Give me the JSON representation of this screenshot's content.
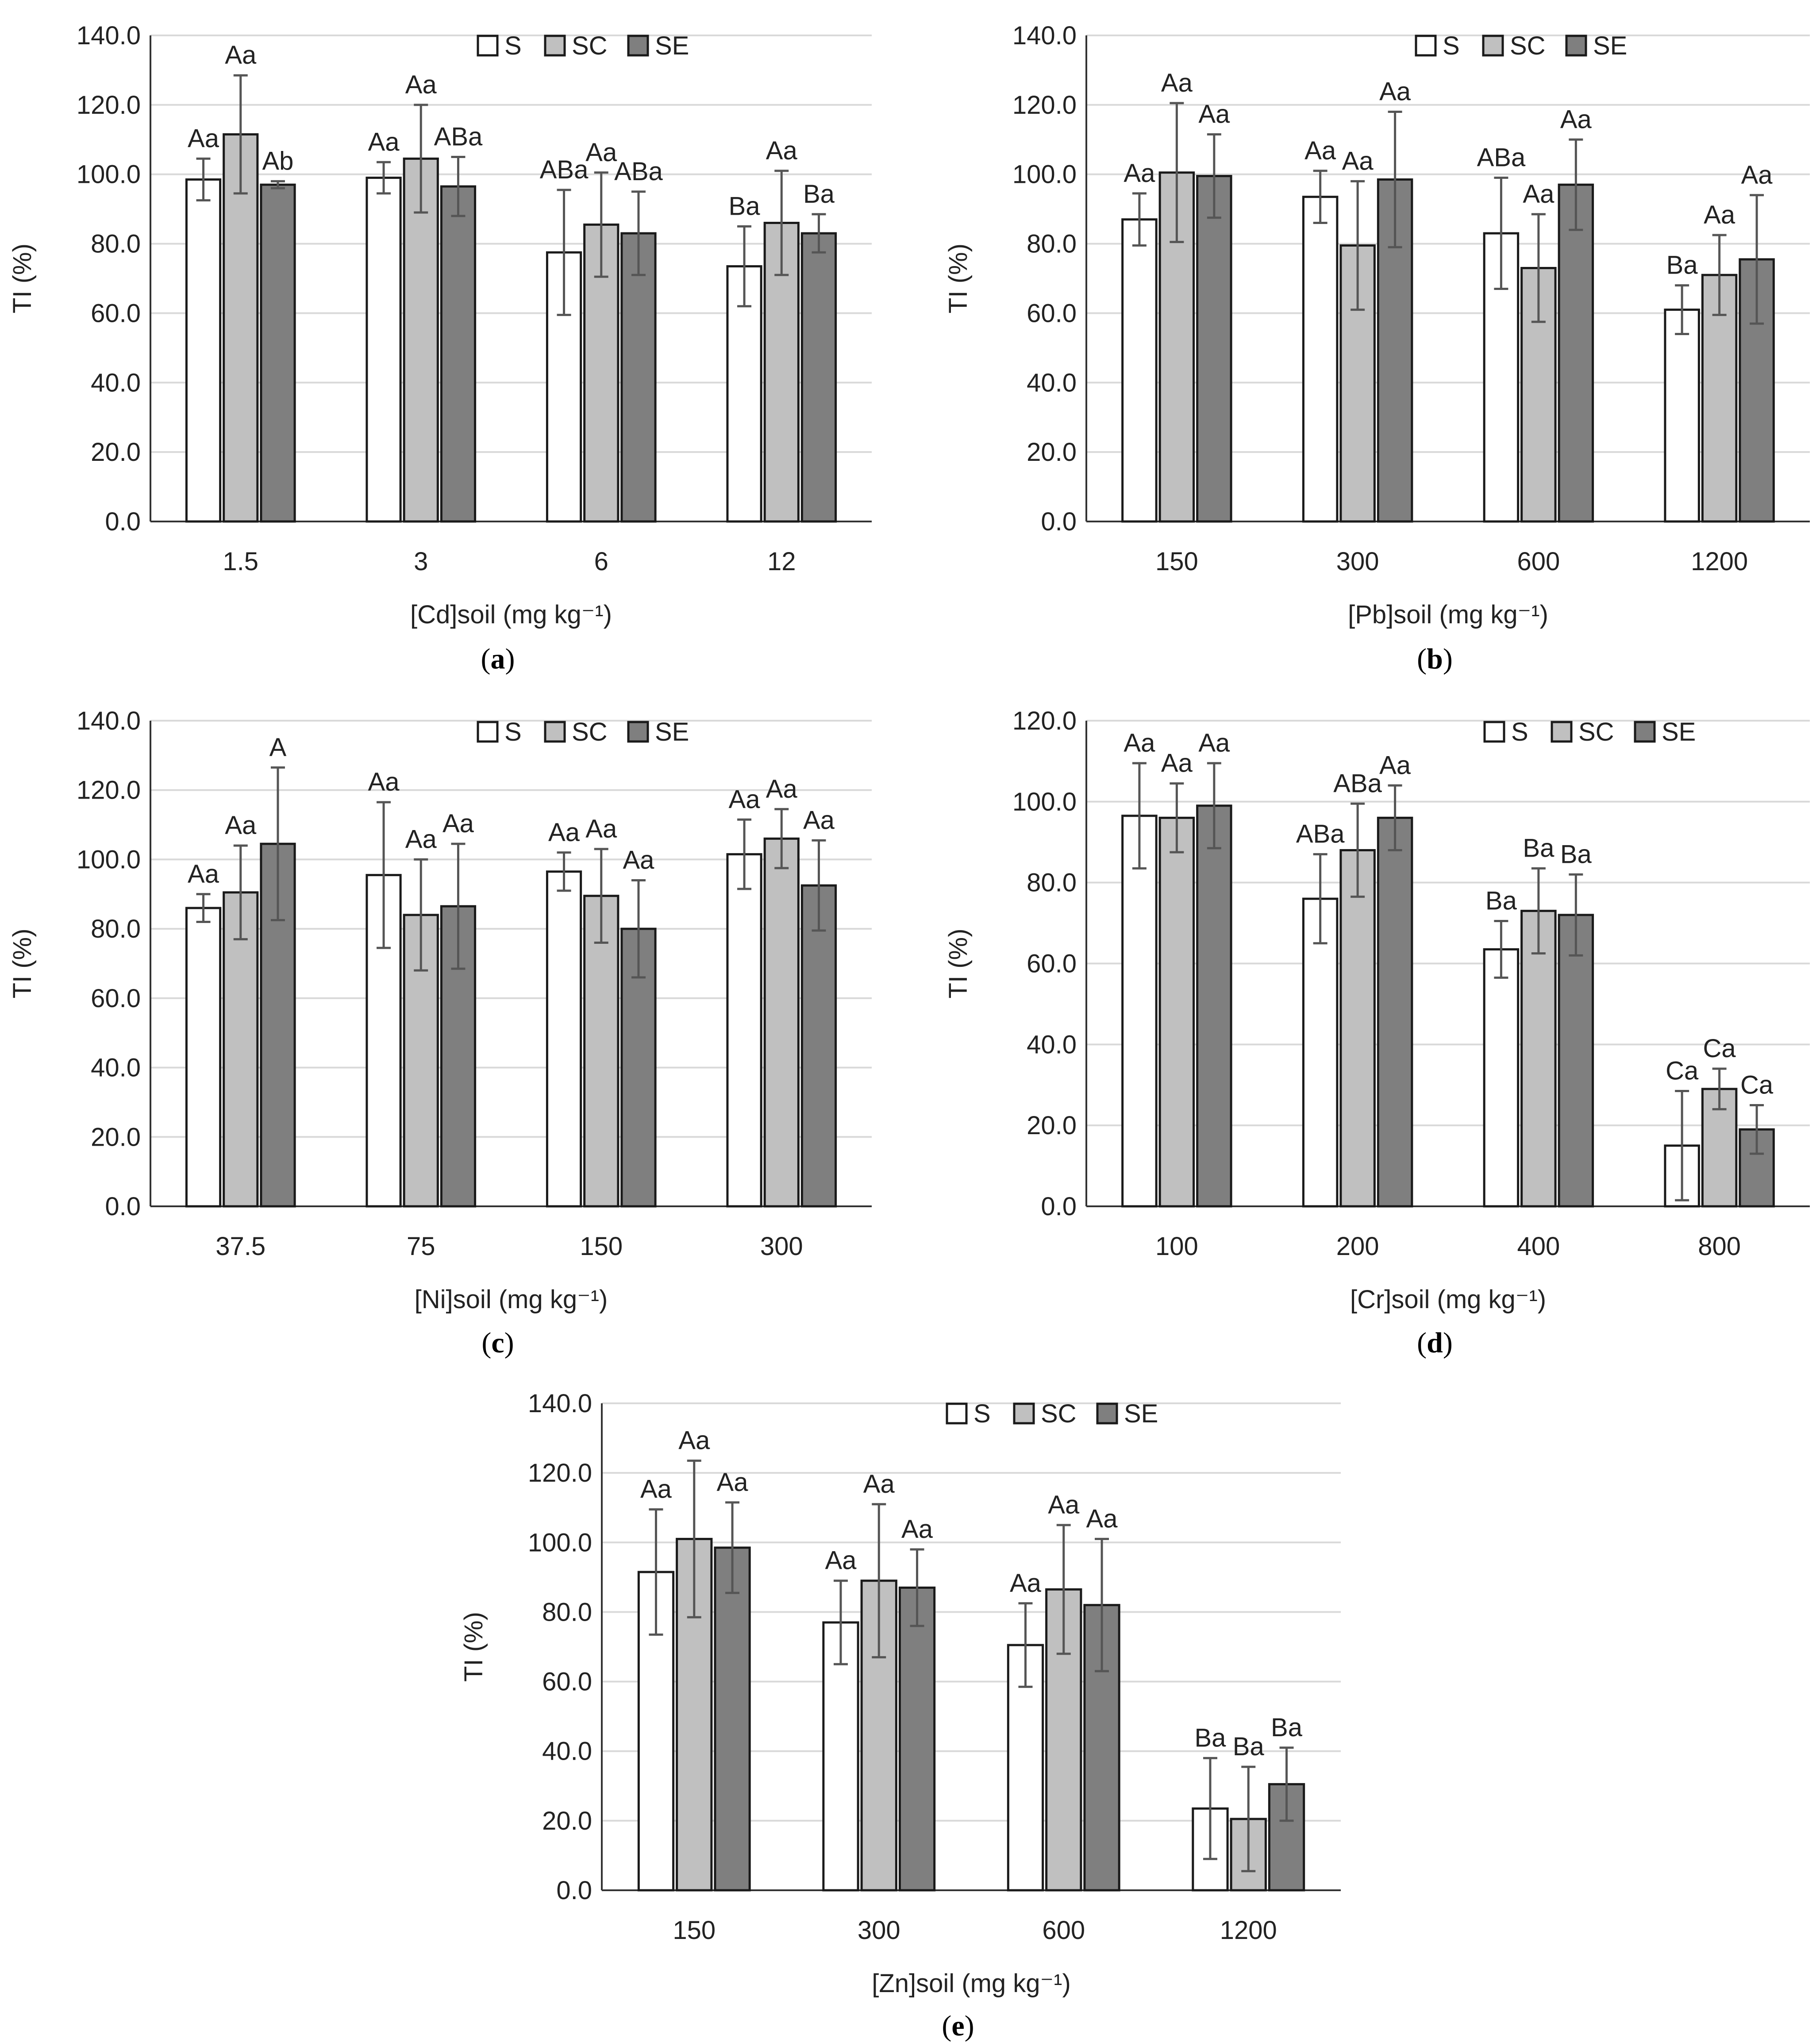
{
  "legend_labels": [
    "S",
    "SC",
    "SE"
  ],
  "colors": {
    "S": "#ffffff",
    "SC": "#c0c0c0",
    "SE": "#7f7f7f",
    "axis": "#333333",
    "grid": "#d9d9d9",
    "errbar": "#555555"
  },
  "chart_data": [
    {
      "type": "bar",
      "panel_label": "a",
      "title": "",
      "xlabel": "[Cd]soil (mg kg⁻¹)",
      "ylabel": "TI (%)",
      "ylim": [
        0,
        140
      ],
      "ytick_step": 20,
      "legend": "top",
      "categories": [
        "1.5",
        "3",
        "6",
        "12"
      ],
      "series": [
        {
          "name": "S",
          "values": [
            98.5,
            99.0,
            77.5,
            73.5
          ],
          "errors": [
            6.0,
            4.5,
            18.0,
            11.5
          ],
          "labels": [
            "Aa",
            "Aa",
            "ABa",
            "Ba"
          ]
        },
        {
          "name": "SC",
          "values": [
            111.5,
            104.5,
            85.5,
            86.0
          ],
          "errors": [
            17.0,
            15.5,
            15.0,
            15.0
          ],
          "labels": [
            "Aa",
            "Aa",
            "Aa",
            "Aa"
          ]
        },
        {
          "name": "SE",
          "values": [
            97.0,
            96.5,
            83.0,
            83.0
          ],
          "errors": [
            1.0,
            8.5,
            12.0,
            5.5
          ],
          "labels": [
            "Ab",
            "ABa",
            "ABa",
            "Ba"
          ]
        }
      ]
    },
    {
      "type": "bar",
      "panel_label": "b",
      "title": "",
      "xlabel": "[Pb]soil (mg kg⁻¹)",
      "ylabel": "TI (%)",
      "ylim": [
        0,
        140
      ],
      "ytick_step": 20,
      "legend": "top",
      "categories": [
        "150",
        "300",
        "600",
        "1200"
      ],
      "series": [
        {
          "name": "S",
          "values": [
            87.0,
            93.5,
            83.0,
            61.0
          ],
          "errors": [
            7.5,
            7.5,
            16.0,
            7.0
          ],
          "labels": [
            "Aa",
            "Aa",
            "ABa",
            "Ba"
          ]
        },
        {
          "name": "SC",
          "values": [
            100.5,
            79.5,
            73.0,
            71.0
          ],
          "errors": [
            20.0,
            18.5,
            15.5,
            11.5
          ],
          "labels": [
            "Aa",
            "Aa",
            "Aa",
            "Aa"
          ]
        },
        {
          "name": "SE",
          "values": [
            99.5,
            98.5,
            97.0,
            75.5
          ],
          "errors": [
            12.0,
            19.5,
            13.0,
            18.5
          ],
          "labels": [
            "Aa",
            "Aa",
            "Aa",
            "Aa"
          ]
        }
      ]
    },
    {
      "type": "bar",
      "panel_label": "c",
      "title": "",
      "xlabel": "[Ni]soil (mg kg⁻¹)",
      "ylabel": "TI (%)",
      "ylim": [
        0,
        140
      ],
      "ytick_step": 20,
      "legend": "top",
      "categories": [
        "37.5",
        "75",
        "150",
        "300"
      ],
      "series": [
        {
          "name": "S",
          "values": [
            86.0,
            95.5,
            96.5,
            101.5
          ],
          "errors": [
            4.0,
            21.0,
            5.5,
            10.0
          ],
          "labels": [
            "Aa",
            "Aa",
            "Aa",
            "Aa"
          ]
        },
        {
          "name": "SC",
          "values": [
            90.5,
            84.0,
            89.5,
            106.0
          ],
          "errors": [
            13.5,
            16.0,
            13.5,
            8.5
          ],
          "labels": [
            "Aa",
            "Aa",
            "Aa",
            "Aa"
          ]
        },
        {
          "name": "SE",
          "values": [
            104.5,
            86.5,
            80.0,
            92.5
          ],
          "errors": [
            22.0,
            18.0,
            14.0,
            13.0
          ],
          "labels": [
            "A",
            "Aa",
            "Aa",
            "Aa"
          ]
        }
      ]
    },
    {
      "type": "bar",
      "panel_label": "d",
      "title": "",
      "xlabel": "[Cr]soil (mg kg⁻¹)",
      "ylabel": "TI (%)",
      "ylim": [
        0,
        120
      ],
      "ytick_step": 20,
      "legend": "top-right",
      "categories": [
        "100",
        "200",
        "400",
        "800"
      ],
      "series": [
        {
          "name": "S",
          "values": [
            96.5,
            76.0,
            63.5,
            15.0
          ],
          "errors": [
            13.0,
            11.0,
            7.0,
            13.5
          ],
          "labels": [
            "Aa",
            "ABa",
            "Ba",
            "Ca"
          ]
        },
        {
          "name": "SC",
          "values": [
            96.0,
            88.0,
            73.0,
            29.0
          ],
          "errors": [
            8.5,
            11.5,
            10.5,
            5.0
          ],
          "labels": [
            "Aa",
            "ABa",
            "Ba",
            "Ca"
          ]
        },
        {
          "name": "SE",
          "values": [
            99.0,
            96.0,
            72.0,
            19.0
          ],
          "errors": [
            10.5,
            8.0,
            10.0,
            6.0
          ],
          "labels": [
            "Aa",
            "Aa",
            "Ba",
            "Ca"
          ]
        }
      ]
    },
    {
      "type": "bar",
      "panel_label": "e",
      "title": "",
      "xlabel": "[Zn]soil (mg kg⁻¹)",
      "ylabel": "TI (%)",
      "ylim": [
        0,
        140
      ],
      "ytick_step": 20,
      "legend": "top",
      "categories": [
        "150",
        "300",
        "600",
        "1200"
      ],
      "series": [
        {
          "name": "S",
          "values": [
            91.5,
            77.0,
            70.5,
            23.5
          ],
          "errors": [
            18.0,
            12.0,
            12.0,
            14.5
          ],
          "labels": [
            "Aa",
            "Aa",
            "Aa",
            "Ba"
          ]
        },
        {
          "name": "SC",
          "values": [
            101.0,
            89.0,
            86.5,
            20.5
          ],
          "errors": [
            22.5,
            22.0,
            18.5,
            15.0
          ],
          "labels": [
            "Aa",
            "Aa",
            "Aa",
            "Ba"
          ]
        },
        {
          "name": "SE",
          "values": [
            98.5,
            87.0,
            82.0,
            30.5
          ],
          "errors": [
            13.0,
            11.0,
            19.0,
            10.5
          ],
          "labels": [
            "Aa",
            "Aa",
            "Aa",
            "Ba"
          ]
        }
      ]
    }
  ]
}
